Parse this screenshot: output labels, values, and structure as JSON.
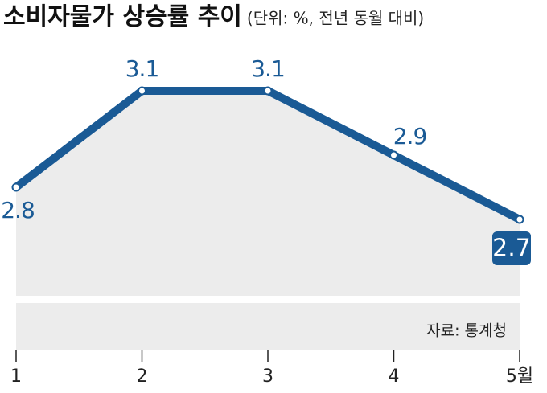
{
  "chart_data": {
    "type": "line",
    "title": "소비자물가 상승률 추이",
    "subtitle": "(단위: %, 전년 동월 대비)",
    "categories": [
      "1",
      "2",
      "3",
      "4",
      "5월"
    ],
    "values": [
      2.8,
      3.1,
      3.1,
      2.9,
      2.7
    ],
    "color": "#1a5a95",
    "source": "자료: 통계청"
  }
}
